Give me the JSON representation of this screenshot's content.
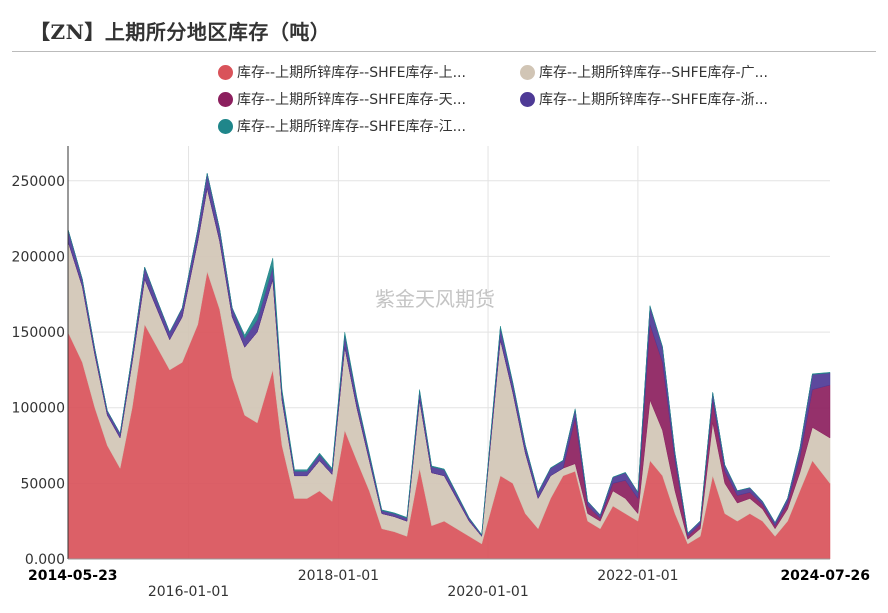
{
  "title": "【ZN】上期所分地区库存（吨）",
  "watermark": "紫金天风期货",
  "chart_data": {
    "type": "area",
    "stacked": true,
    "x_start": "2014-05-23",
    "x_end": "2024-07-26",
    "x_ticks": [
      "2014-05-23",
      "2016-01-01",
      "2018-01-01",
      "2020-01-01",
      "2022-01-01",
      "2024-07-26"
    ],
    "y_ticks": [
      0,
      50000,
      100000,
      150000,
      200000,
      250000
    ],
    "y_tick_labels": [
      "0.000",
      "50000",
      "100000",
      "150000",
      "200000",
      "250000"
    ],
    "ylim": [
      0,
      273000
    ],
    "grid": true,
    "legend_position": "top",
    "dates": [
      "2014-05-23",
      "2014-08-01",
      "2014-10-01",
      "2014-12-01",
      "2015-02-01",
      "2015-04-01",
      "2015-06-01",
      "2015-08-01",
      "2015-10-01",
      "2015-12-01",
      "2016-02-15",
      "2016-04-01",
      "2016-06-01",
      "2016-08-01",
      "2016-10-01",
      "2016-12-01",
      "2017-02-15",
      "2017-04-01",
      "2017-06-01",
      "2017-08-01",
      "2017-10-01",
      "2017-12-01",
      "2018-02-01",
      "2018-04-01",
      "2018-06-01",
      "2018-08-01",
      "2018-10-01",
      "2018-12-01",
      "2019-02-01",
      "2019-04-01",
      "2019-06-01",
      "2019-08-01",
      "2019-10-01",
      "2019-12-01",
      "2020-03-01",
      "2020-05-01",
      "2020-07-01",
      "2020-09-01",
      "2020-11-01",
      "2021-01-01",
      "2021-03-01",
      "2021-05-01",
      "2021-07-01",
      "2021-09-01",
      "2021-11-01",
      "2022-01-01",
      "2022-03-01",
      "2022-05-01",
      "2022-07-01",
      "2022-09-01",
      "2022-11-01",
      "2023-01-01",
      "2023-03-01",
      "2023-05-01",
      "2023-07-01",
      "2023-09-01",
      "2023-11-01",
      "2024-01-01",
      "2024-03-01",
      "2024-05-01",
      "2024-07-26"
    ],
    "series": [
      {
        "name": "库存--上期所锌库存--SHFE库存-上...",
        "color": "#d9535a",
        "values": [
          150000,
          130000,
          100000,
          75000,
          60000,
          100000,
          155000,
          140000,
          125000,
          130000,
          155000,
          190000,
          165000,
          120000,
          95000,
          90000,
          125000,
          75000,
          40000,
          40000,
          45000,
          38000,
          85000,
          65000,
          45000,
          20000,
          18000,
          15000,
          60000,
          22000,
          25000,
          20000,
          15000,
          10000,
          55000,
          50000,
          30000,
          20000,
          40000,
          55000,
          58000,
          25000,
          20000,
          35000,
          30000,
          25000,
          65000,
          55000,
          30000,
          10000,
          15000,
          55000,
          30000,
          25000,
          30000,
          25000,
          15000,
          25000,
          45000,
          65000,
          50000
        ]
      },
      {
        "name": "库存--上期所锌库存--SHFE库存-广...",
        "color": "#d1c5b5",
        "values": [
          60000,
          50000,
          35000,
          20000,
          20000,
          30000,
          30000,
          25000,
          20000,
          30000,
          55000,
          55000,
          45000,
          40000,
          45000,
          60000,
          60000,
          30000,
          15000,
          15000,
          20000,
          18000,
          55000,
          35000,
          20000,
          10000,
          10000,
          10000,
          45000,
          35000,
          30000,
          20000,
          10000,
          5000,
          90000,
          60000,
          40000,
          20000,
          15000,
          5000,
          5000,
          5000,
          5000,
          10000,
          10000,
          5000,
          40000,
          30000,
          15000,
          3000,
          5000,
          35000,
          20000,
          12000,
          10000,
          8000,
          5000,
          8000,
          12000,
          22000,
          30000
        ]
      },
      {
        "name": "库存--上期所锌库存--SHFE库存-天...",
        "color": "#8c1f5e",
        "values": [
          0,
          0,
          0,
          0,
          0,
          0,
          0,
          0,
          0,
          0,
          0,
          0,
          0,
          0,
          0,
          0,
          0,
          0,
          0,
          0,
          0,
          0,
          0,
          0,
          0,
          0,
          0,
          0,
          0,
          0,
          0,
          0,
          0,
          0,
          0,
          0,
          0,
          0,
          0,
          0,
          30000,
          5000,
          2000,
          5000,
          12000,
          10000,
          50000,
          45000,
          20000,
          2000,
          3000,
          15000,
          8000,
          5000,
          4000,
          3000,
          2000,
          4000,
          10000,
          25000,
          35000
        ]
      },
      {
        "name": "库存--上期所锌库存--SHFE库存-浙...",
        "color": "#4e3a96",
        "values": [
          8000,
          5000,
          4000,
          3000,
          3000,
          5000,
          8000,
          6000,
          5000,
          6000,
          8000,
          10000,
          8000,
          6000,
          6000,
          8000,
          8000,
          5000,
          3000,
          3000,
          4000,
          3000,
          8000,
          6000,
          4000,
          2000,
          2000,
          2000,
          6000,
          4000,
          4000,
          3000,
          2000,
          1000,
          8000,
          6000,
          5000,
          4000,
          5000,
          5000,
          6000,
          3000,
          2000,
          4000,
          5000,
          4000,
          12000,
          10000,
          5000,
          2000,
          2000,
          5000,
          4000,
          3000,
          3000,
          2000,
          2000,
          3000,
          6000,
          10000,
          8000
        ]
      },
      {
        "name": "库存--上期所锌库存--SHFE库存-江...",
        "color": "#1f868a",
        "values": [
          0,
          0,
          0,
          0,
          0,
          0,
          0,
          0,
          0,
          0,
          0,
          0,
          0,
          0,
          2000,
          5000,
          6000,
          2000,
          1000,
          1000,
          1000,
          1000,
          2000,
          1000,
          1000,
          500,
          500,
          500,
          1000,
          500,
          500,
          500,
          300,
          200,
          1000,
          800,
          500,
          300,
          300,
          300,
          300,
          200,
          200,
          200,
          300,
          200,
          500,
          500,
          300,
          200,
          200,
          300,
          300,
          200,
          200,
          200,
          200,
          200,
          300,
          400,
          400
        ]
      }
    ]
  }
}
